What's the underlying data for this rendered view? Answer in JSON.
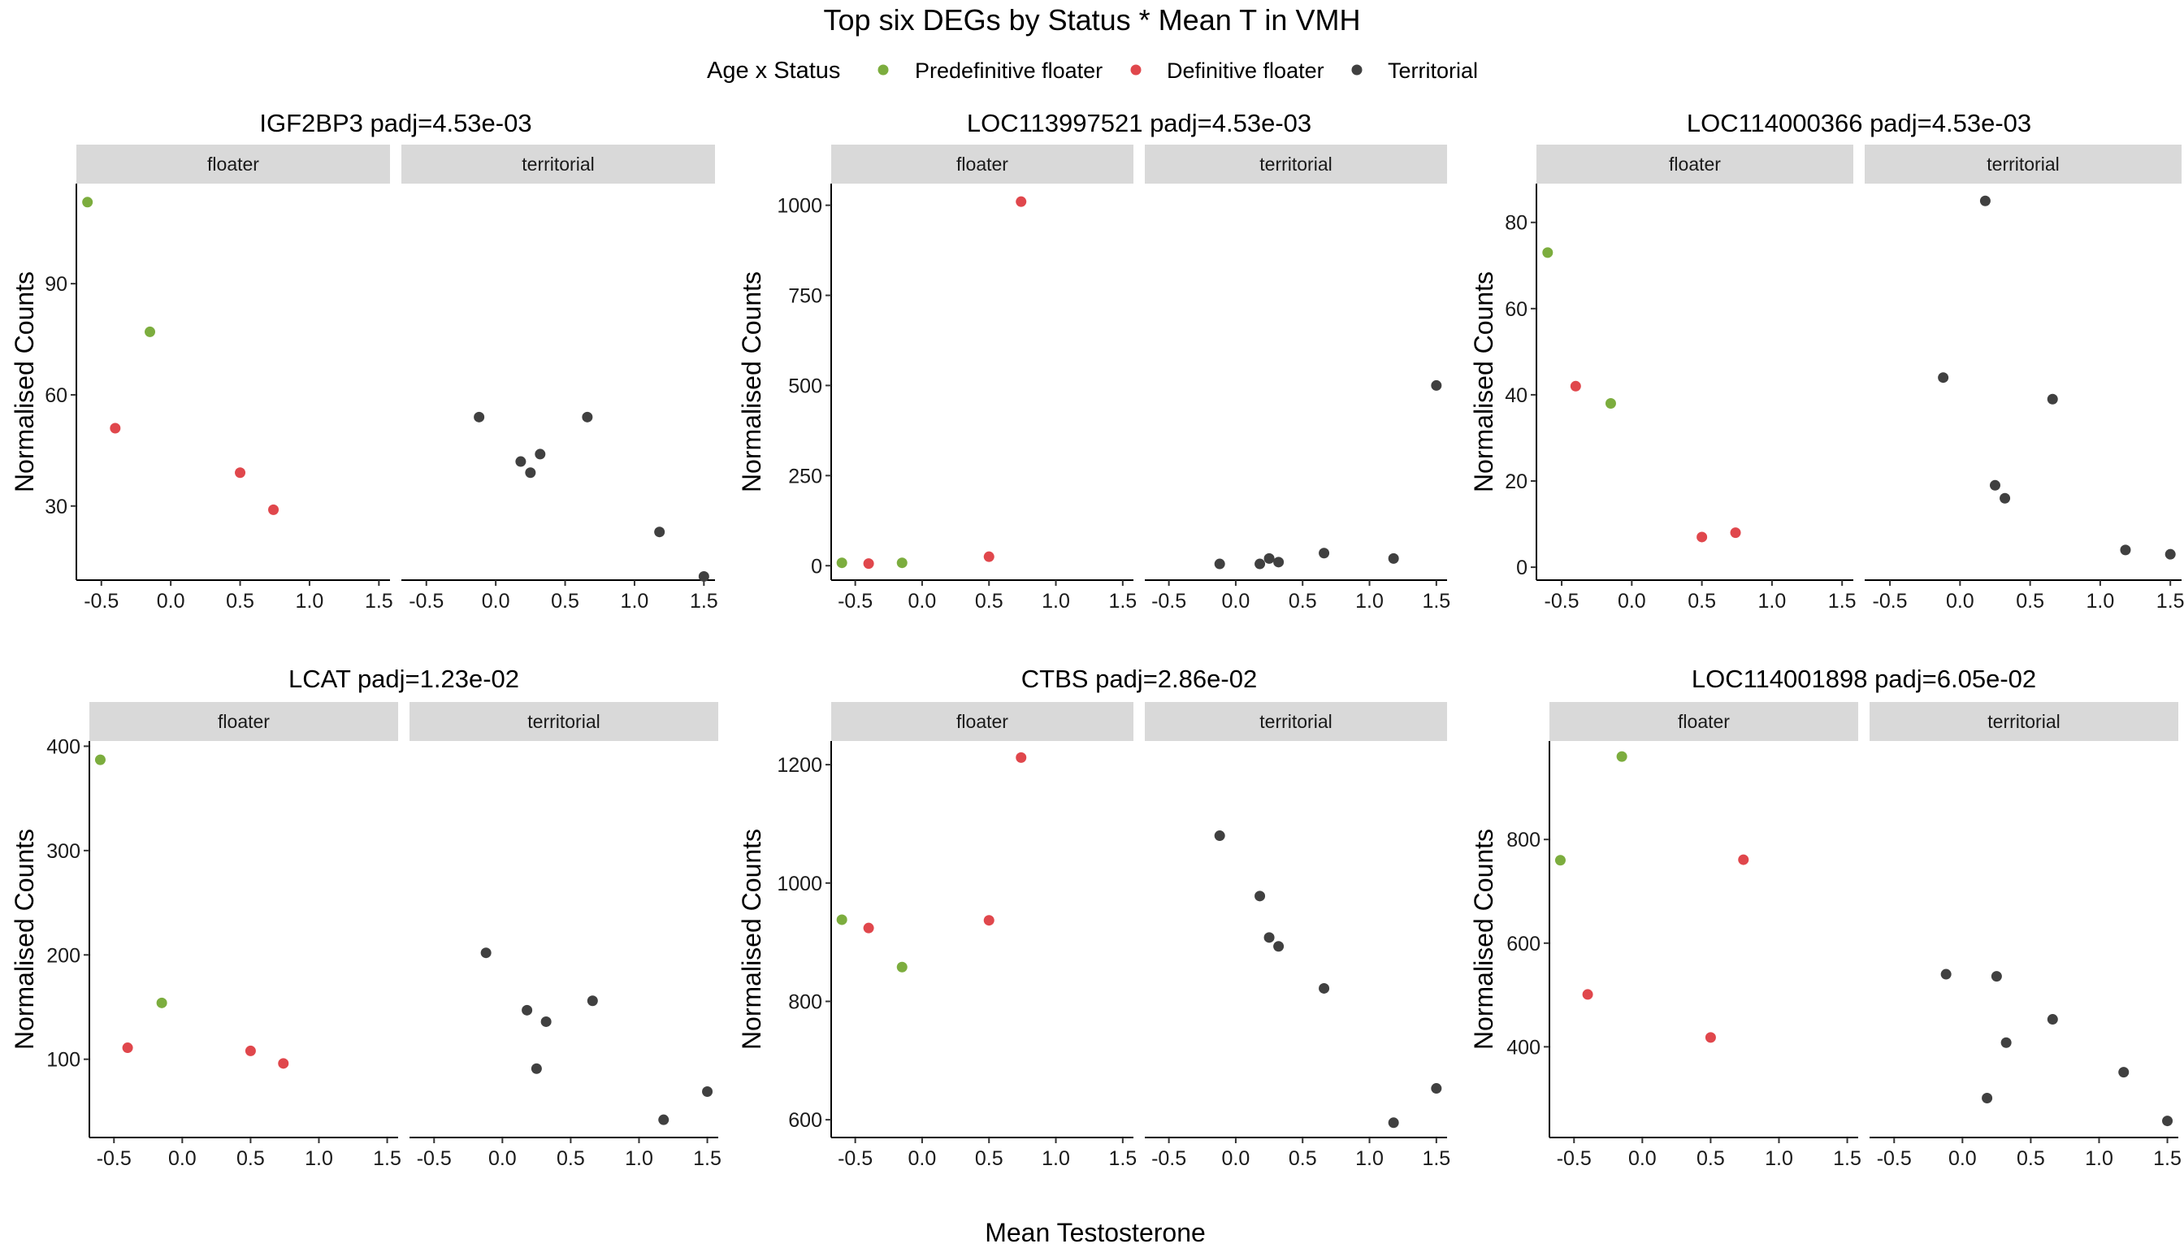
{
  "title": "Top six DEGs by Status * Mean T in VMH",
  "legend": {
    "title": "Age x Status",
    "items": [
      {
        "label": "Predefinitive floater",
        "color": "#7cad3e"
      },
      {
        "label": "Definitive floater",
        "color": "#e0474c"
      },
      {
        "label": "Territorial",
        "color": "#404040"
      }
    ]
  },
  "x_axis_title": "Mean Testosterone",
  "y_axis_title": "Normalised Counts",
  "facets": [
    "floater",
    "territorial"
  ],
  "chart_data": [
    {
      "type": "scatter",
      "title": "IGF2BP3 padj=4.53e-03",
      "xlim": [
        -0.68,
        1.58
      ],
      "ylim": [
        10,
        117
      ],
      "xticks": [
        "-0.5",
        "0.0",
        "0.5",
        "1.0",
        "1.5"
      ],
      "yticks": [
        30,
        60,
        90
      ],
      "points": {
        "floater": [
          {
            "x": -0.6,
            "y": 112,
            "group": 0
          },
          {
            "x": -0.15,
            "y": 77,
            "group": 0
          },
          {
            "x": -0.4,
            "y": 51,
            "group": 1
          },
          {
            "x": 0.5,
            "y": 39,
            "group": 1
          },
          {
            "x": 0.74,
            "y": 29,
            "group": 1
          }
        ],
        "territorial": [
          {
            "x": -0.12,
            "y": 54,
            "group": 2
          },
          {
            "x": 0.18,
            "y": 42,
            "group": 2
          },
          {
            "x": 0.25,
            "y": 39,
            "group": 2
          },
          {
            "x": 0.32,
            "y": 44,
            "group": 2
          },
          {
            "x": 0.66,
            "y": 54,
            "group": 2
          },
          {
            "x": 1.18,
            "y": 23,
            "group": 2
          },
          {
            "x": 1.5,
            "y": 11,
            "group": 2
          }
        ]
      }
    },
    {
      "type": "scatter",
      "title": "LOC113997521 padj=4.53e-03",
      "xlim": [
        -0.68,
        1.58
      ],
      "ylim": [
        -40,
        1060
      ],
      "xticks": [
        "-0.5",
        "0.0",
        "0.5",
        "1.0",
        "1.5"
      ],
      "yticks": [
        0,
        250,
        500,
        750,
        1000
      ],
      "points": {
        "floater": [
          {
            "x": -0.6,
            "y": 8,
            "group": 0
          },
          {
            "x": -0.15,
            "y": 8,
            "group": 0
          },
          {
            "x": -0.4,
            "y": 6,
            "group": 1
          },
          {
            "x": 0.5,
            "y": 25,
            "group": 1
          },
          {
            "x": 0.74,
            "y": 1010,
            "group": 1
          }
        ],
        "territorial": [
          {
            "x": -0.12,
            "y": 5,
            "group": 2
          },
          {
            "x": 0.18,
            "y": 5,
            "group": 2
          },
          {
            "x": 0.25,
            "y": 20,
            "group": 2
          },
          {
            "x": 0.32,
            "y": 10,
            "group": 2
          },
          {
            "x": 0.66,
            "y": 35,
            "group": 2
          },
          {
            "x": 1.18,
            "y": 20,
            "group": 2
          },
          {
            "x": 1.5,
            "y": 500,
            "group": 2
          }
        ]
      }
    },
    {
      "type": "scatter",
      "title": "LOC114000366 padj=4.53e-03",
      "xlim": [
        -0.68,
        1.58
      ],
      "ylim": [
        -3,
        89
      ],
      "xticks": [
        "-0.5",
        "0.0",
        "0.5",
        "1.0",
        "1.5"
      ],
      "yticks": [
        0,
        20,
        40,
        60,
        80
      ],
      "points": {
        "floater": [
          {
            "x": -0.6,
            "y": 73,
            "group": 0
          },
          {
            "x": -0.15,
            "y": 38,
            "group": 0
          },
          {
            "x": -0.4,
            "y": 42,
            "group": 1
          },
          {
            "x": 0.5,
            "y": 7,
            "group": 1
          },
          {
            "x": 0.74,
            "y": 8,
            "group": 1
          }
        ],
        "territorial": [
          {
            "x": -0.12,
            "y": 44,
            "group": 2
          },
          {
            "x": 0.18,
            "y": 85,
            "group": 2
          },
          {
            "x": 0.25,
            "y": 19,
            "group": 2
          },
          {
            "x": 0.32,
            "y": 16,
            "group": 2
          },
          {
            "x": 0.66,
            "y": 39,
            "group": 2
          },
          {
            "x": 1.18,
            "y": 4,
            "group": 2
          },
          {
            "x": 1.5,
            "y": 3,
            "group": 2
          }
        ]
      }
    },
    {
      "type": "scatter",
      "title": "LCAT padj=1.23e-02",
      "xlim": [
        -0.68,
        1.58
      ],
      "ylim": [
        25,
        405
      ],
      "xticks": [
        "-0.5",
        "0.0",
        "0.5",
        "1.0",
        "1.5"
      ],
      "yticks": [
        100,
        200,
        300,
        400
      ],
      "points": {
        "floater": [
          {
            "x": -0.6,
            "y": 387,
            "group": 0
          },
          {
            "x": -0.15,
            "y": 154,
            "group": 0
          },
          {
            "x": -0.4,
            "y": 111,
            "group": 1
          },
          {
            "x": 0.5,
            "y": 108,
            "group": 1
          },
          {
            "x": 0.74,
            "y": 96,
            "group": 1
          }
        ],
        "territorial": [
          {
            "x": -0.12,
            "y": 202,
            "group": 2
          },
          {
            "x": 0.18,
            "y": 147,
            "group": 2
          },
          {
            "x": 0.25,
            "y": 91,
            "group": 2
          },
          {
            "x": 0.32,
            "y": 136,
            "group": 2
          },
          {
            "x": 0.66,
            "y": 156,
            "group": 2
          },
          {
            "x": 1.18,
            "y": 42,
            "group": 2
          },
          {
            "x": 1.5,
            "y": 69,
            "group": 2
          }
        ]
      }
    },
    {
      "type": "scatter",
      "title": "CTBS padj=2.86e-02",
      "xlim": [
        -0.68,
        1.58
      ],
      "ylim": [
        570,
        1240
      ],
      "xticks": [
        "-0.5",
        "0.0",
        "0.5",
        "1.0",
        "1.5"
      ],
      "yticks": [
        600,
        800,
        1000,
        1200
      ],
      "points": {
        "floater": [
          {
            "x": -0.6,
            "y": 938,
            "group": 0
          },
          {
            "x": -0.15,
            "y": 858,
            "group": 0
          },
          {
            "x": -0.4,
            "y": 924,
            "group": 1
          },
          {
            "x": 0.5,
            "y": 937,
            "group": 1
          },
          {
            "x": 0.74,
            "y": 1212,
            "group": 1
          }
        ],
        "territorial": [
          {
            "x": -0.12,
            "y": 1080,
            "group": 2
          },
          {
            "x": 0.18,
            "y": 978,
            "group": 2
          },
          {
            "x": 0.25,
            "y": 908,
            "group": 2
          },
          {
            "x": 0.32,
            "y": 893,
            "group": 2
          },
          {
            "x": 0.66,
            "y": 822,
            "group": 2
          },
          {
            "x": 1.18,
            "y": 595,
            "group": 2
          },
          {
            "x": 1.5,
            "y": 653,
            "group": 2
          }
        ]
      }
    },
    {
      "type": "scatter",
      "title": "LOC114001898 padj=6.05e-02",
      "xlim": [
        -0.68,
        1.58
      ],
      "ylim": [
        225,
        990
      ],
      "xticks": [
        "-0.5",
        "0.0",
        "0.5",
        "1.0",
        "1.5"
      ],
      "yticks": [
        400,
        600,
        800
      ],
      "points": {
        "floater": [
          {
            "x": -0.6,
            "y": 760,
            "group": 0
          },
          {
            "x": -0.15,
            "y": 960,
            "group": 0
          },
          {
            "x": -0.4,
            "y": 501,
            "group": 1
          },
          {
            "x": 0.5,
            "y": 418,
            "group": 1
          },
          {
            "x": 0.74,
            "y": 761,
            "group": 1
          }
        ],
        "territorial": [
          {
            "x": -0.12,
            "y": 540,
            "group": 2
          },
          {
            "x": 0.18,
            "y": 301,
            "group": 2
          },
          {
            "x": 0.25,
            "y": 536,
            "group": 2
          },
          {
            "x": 0.32,
            "y": 408,
            "group": 2
          },
          {
            "x": 0.66,
            "y": 453,
            "group": 2
          },
          {
            "x": 1.18,
            "y": 351,
            "group": 2
          },
          {
            "x": 1.5,
            "y": 257,
            "group": 2
          }
        ]
      }
    }
  ]
}
